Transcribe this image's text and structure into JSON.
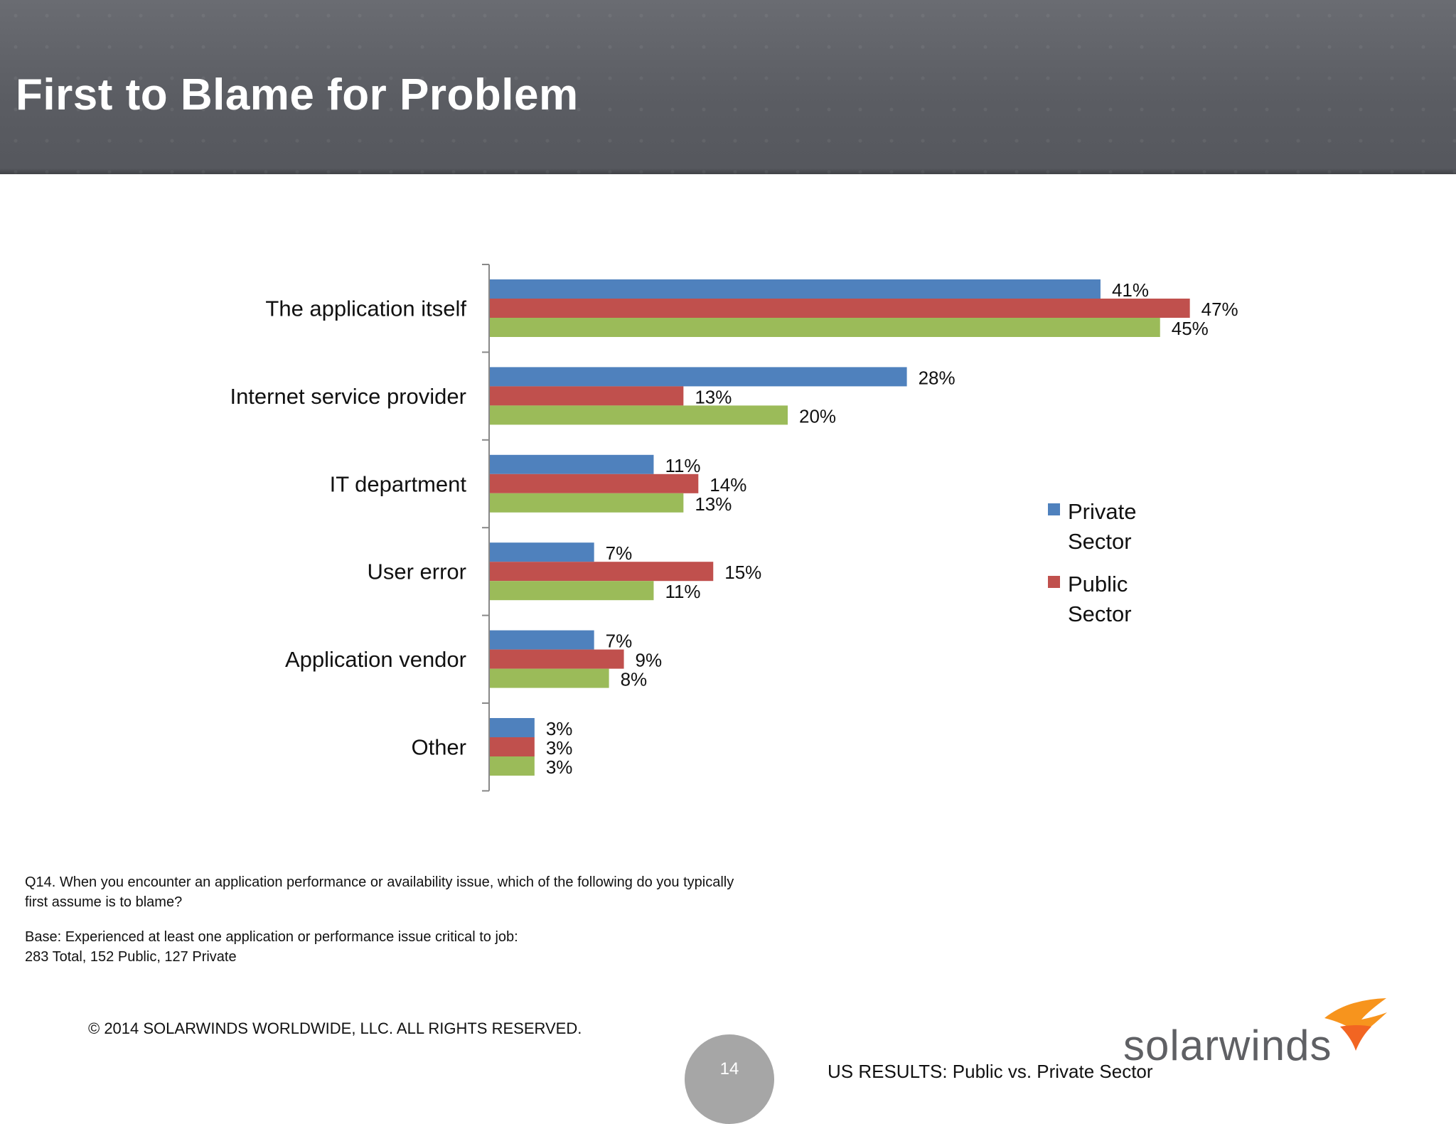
{
  "slide": {
    "title": "First to Blame for Problem",
    "question": "Q14. When you encounter an application performance or availability issue, which of the following do you typically first assume is to blame?",
    "base": "Base:  Experienced at least one  application or performance issue critical to job:  283 Total, 152 Public, 127 Private",
    "copyright": "© 2014 SOLARWINDS WORLDWIDE, LLC.  ALL RIGHTS RESERVED.",
    "page_number": "14",
    "results_caption": "US RESULTS:  Public vs. Private Sector",
    "logo_text": "solarwinds"
  },
  "colors": {
    "private": "#4f81bd",
    "public": "#c0504d",
    "third": "#9bbb59",
    "header_bg": "#5b5d63",
    "logo_orange": "#f7941d"
  },
  "chart_data": {
    "type": "bar",
    "orientation": "horizontal",
    "categories": [
      "The application itself",
      "Internet service provider",
      "IT department",
      "User error",
      "Application vendor",
      "Other"
    ],
    "series": [
      {
        "name": "Private Sector",
        "values": [
          41,
          28,
          11,
          7,
          7,
          3
        ],
        "color": "#4f81bd"
      },
      {
        "name": "Public Sector",
        "values": [
          47,
          13,
          14,
          15,
          9,
          3
        ],
        "color": "#c0504d"
      },
      {
        "name": "",
        "values": [
          45,
          20,
          13,
          11,
          8,
          3
        ],
        "color": "#9bbb59"
      }
    ],
    "value_suffix": "%",
    "legend_position": "right",
    "grid": false,
    "xlim": [
      0,
      50
    ]
  }
}
